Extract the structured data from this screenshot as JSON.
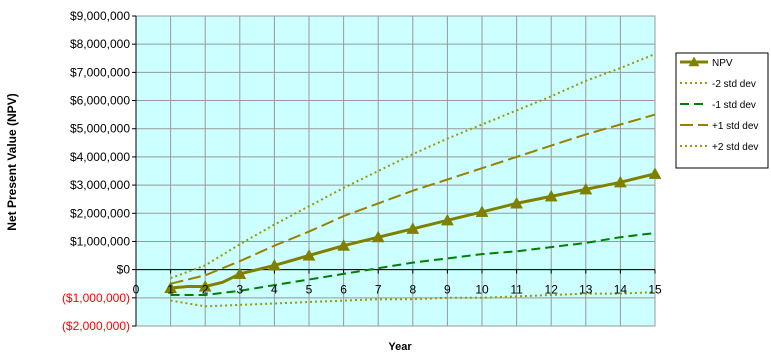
{
  "chart_data": {
    "type": "line",
    "title": "",
    "xlabel": "Year",
    "ylabel": "Net Present Value (NPV)",
    "x_ticks": [
      "0",
      "1",
      "2",
      "3",
      "4",
      "5",
      "6",
      "7",
      "8",
      "9",
      "10",
      "11",
      "12",
      "13",
      "14",
      "15"
    ],
    "xlim": [
      0,
      15
    ],
    "ylim": [
      -2000000,
      9000000
    ],
    "y_ticks": [
      {
        "value": 9000000,
        "label": "$9,000,000"
      },
      {
        "value": 8000000,
        "label": "$8,000,000"
      },
      {
        "value": 7000000,
        "label": "$7,000,000"
      },
      {
        "value": 6000000,
        "label": "$6,000,000"
      },
      {
        "value": 5000000,
        "label": "$5,000,000"
      },
      {
        "value": 4000000,
        "label": "$4,000,000"
      },
      {
        "value": 3000000,
        "label": "$3,000,000"
      },
      {
        "value": 2000000,
        "label": "$2,000,000"
      },
      {
        "value": 1000000,
        "label": "$1,000,000"
      },
      {
        "value": 0,
        "label": "$0"
      },
      {
        "value": -1000000,
        "label": "($1,000,000)"
      },
      {
        "value": -2000000,
        "label": "($2,000,000)"
      }
    ],
    "grid": true,
    "legend_position": "right",
    "colors": {
      "plot_background": "#ccffff",
      "grid": "#999999",
      "npv": "#808000",
      "minus2": "#999900",
      "minus1": "#008000",
      "plus1": "#998000",
      "plus2": "#999900",
      "negative_label": "#ff0000"
    },
    "series": [
      {
        "name": "NPV",
        "style": "solid-triangle",
        "color_key": "npv",
        "x": [
          1,
          1.5,
          2,
          2.5,
          3,
          4,
          5,
          6,
          7,
          8,
          9,
          10,
          11,
          12,
          13,
          14,
          15
        ],
        "values": [
          -650000,
          -600000,
          -600000,
          -450000,
          -150000,
          150000,
          500000,
          850000,
          1150000,
          1450000,
          1750000,
          2050000,
          2350000,
          2600000,
          2850000,
          3100000,
          3400000
        ]
      },
      {
        "name": "-2 std dev",
        "style": "dotted",
        "color_key": "minus2",
        "x": [
          1,
          2,
          3,
          4,
          5,
          6,
          7,
          8,
          9,
          10,
          11,
          12,
          13,
          14,
          15
        ],
        "values": [
          -1100000,
          -1300000,
          -1250000,
          -1200000,
          -1150000,
          -1100000,
          -1050000,
          -1050000,
          -1000000,
          -1000000,
          -950000,
          -900000,
          -850000,
          -850000,
          -800000
        ]
      },
      {
        "name": "-1 std dev",
        "style": "dashed",
        "color_key": "minus1",
        "x": [
          1,
          2,
          3,
          4,
          5,
          6,
          7,
          8,
          9,
          10,
          11,
          12,
          13,
          14,
          15
        ],
        "values": [
          -900000,
          -900000,
          -750000,
          -550000,
          -350000,
          -150000,
          50000,
          250000,
          400000,
          550000,
          650000,
          800000,
          950000,
          1150000,
          1300000
        ]
      },
      {
        "name": "+1 std dev",
        "style": "long-dash",
        "color_key": "plus1",
        "x": [
          1,
          2,
          3,
          4,
          5,
          6,
          7,
          8,
          9,
          10,
          11,
          12,
          13,
          14,
          15
        ],
        "values": [
          -500000,
          -200000,
          300000,
          850000,
          1350000,
          1900000,
          2350000,
          2800000,
          3200000,
          3600000,
          4000000,
          4400000,
          4800000,
          5150000,
          5500000
        ]
      },
      {
        "name": "+2 std dev",
        "style": "dotted",
        "color_key": "plus2",
        "x": [
          1,
          2,
          3,
          4,
          5,
          6,
          7,
          8,
          9,
          10,
          11,
          12,
          13,
          14,
          15
        ],
        "values": [
          -300000,
          150000,
          900000,
          1600000,
          2250000,
          2900000,
          3500000,
          4100000,
          4650000,
          5150000,
          5650000,
          6150000,
          6700000,
          7150000,
          7650000
        ]
      }
    ]
  }
}
